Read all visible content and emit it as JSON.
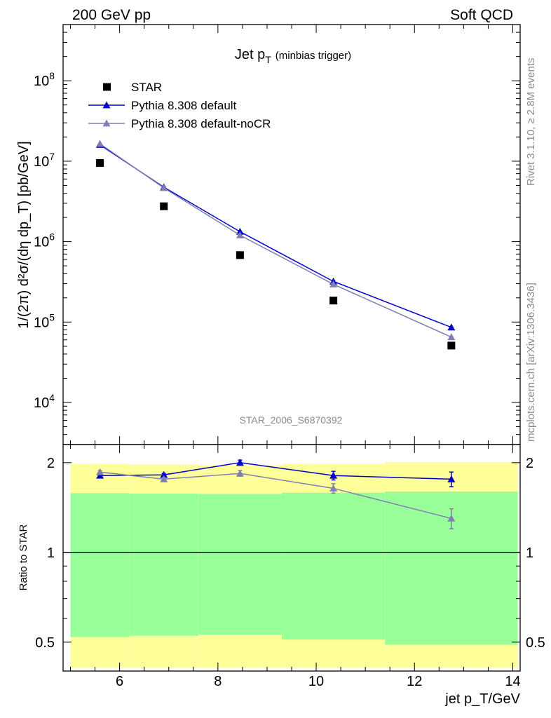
{
  "header": {
    "left": "200 GeV pp",
    "right": "Soft QCD"
  },
  "side_text": {
    "top": "Rivet 3.1.10, ≥ 2.8M events",
    "bottom": "mcplots.cern.ch [arXiv:1306.3436]"
  },
  "chart_data": {
    "type": "line",
    "title": "Jet p_T (minbias trigger)",
    "title_main": "Jet p",
    "title_sub": "T",
    "title_note": "(minbias trigger)",
    "analysis_label": "STAR_2006_S6870392",
    "ylabel": "1/(2π) d²σ/(dη dp_T) [pb/GeV]",
    "xlabel": "jet p_T/GeV",
    "xlim": [
      4.85,
      14.15
    ],
    "main_panel": {
      "yscale": "log",
      "ylim": [
        3000,
        500000000
      ],
      "yticks": [
        {
          "value": 10000,
          "base": "10",
          "exp": "4"
        },
        {
          "value": 100000,
          "base": "10",
          "exp": "5"
        },
        {
          "value": 1000000,
          "base": "10",
          "exp": "6"
        },
        {
          "value": 10000000,
          "base": "10",
          "exp": "7"
        },
        {
          "value": 100000000,
          "base": "10",
          "exp": "8"
        }
      ],
      "legend_position": "top-left",
      "series": [
        {
          "name": "STAR",
          "kind": "data",
          "color": "#000000",
          "marker": "square",
          "x": [
            5.6,
            6.9,
            8.45,
            10.35,
            12.75
          ],
          "y": [
            9500000,
            2750000,
            680000,
            185000,
            51000
          ]
        },
        {
          "name": "Pythia 8.308 default",
          "kind": "mc",
          "color": "#0000cc",
          "marker": "triangle",
          "x": [
            5.6,
            6.9,
            8.45,
            10.35,
            12.75
          ],
          "y": [
            16000000,
            4750000,
            1330000,
            320000,
            86000
          ]
        },
        {
          "name": "Pythia 8.308 default-noCR",
          "kind": "mc",
          "color": "#7f7fb3",
          "marker": "triangle",
          "x": [
            5.6,
            6.9,
            8.45,
            10.35,
            12.75
          ],
          "y": [
            16500000,
            4650000,
            1200000,
            295000,
            65000
          ]
        }
      ]
    },
    "ratio_panel": {
      "ylabel": "Ratio to STAR",
      "yscale": "log",
      "ylim": [
        0.4,
        2.3
      ],
      "yticks": [
        {
          "value": 0.5,
          "label": "0.5"
        },
        {
          "value": 1,
          "label": "1"
        },
        {
          "value": 2,
          "label": "2"
        }
      ],
      "xticks": [
        6,
        8,
        10,
        12,
        14
      ],
      "reference_line": 1,
      "bands": [
        {
          "x0": 5.0,
          "x1": 6.2,
          "yellow": [
            0.41,
            1.98
          ],
          "green": [
            0.52,
            1.58
          ]
        },
        {
          "x0": 6.2,
          "x1": 7.6,
          "yellow": [
            0.41,
            1.97
          ],
          "green": [
            0.525,
            1.575
          ]
        },
        {
          "x0": 7.6,
          "x1": 9.3,
          "yellow": [
            0.41,
            1.96
          ],
          "green": [
            0.53,
            1.57
          ]
        },
        {
          "x0": 9.3,
          "x1": 11.4,
          "yellow": [
            0.41,
            1.98
          ],
          "green": [
            0.51,
            1.585
          ]
        },
        {
          "x0": 11.4,
          "x1": 14.1,
          "yellow": [
            0.41,
            2.01
          ],
          "green": [
            0.49,
            1.6
          ]
        }
      ],
      "series": [
        {
          "name": "Pythia 8.308 default",
          "color": "#0000cc",
          "x": [
            5.6,
            6.9,
            8.45,
            10.35,
            12.75
          ],
          "y": [
            1.81,
            1.82,
            2.0,
            1.81,
            1.76
          ],
          "err": [
            0.02,
            0.02,
            0.04,
            0.06,
            0.1
          ]
        },
        {
          "name": "Pythia 8.308 default-noCR",
          "color": "#7f7fb3",
          "x": [
            5.6,
            6.9,
            8.45,
            10.35,
            12.75
          ],
          "y": [
            1.86,
            1.76,
            1.84,
            1.64,
            1.3
          ],
          "err": [
            0.02,
            0.02,
            0.04,
            0.06,
            0.1
          ]
        }
      ]
    }
  }
}
